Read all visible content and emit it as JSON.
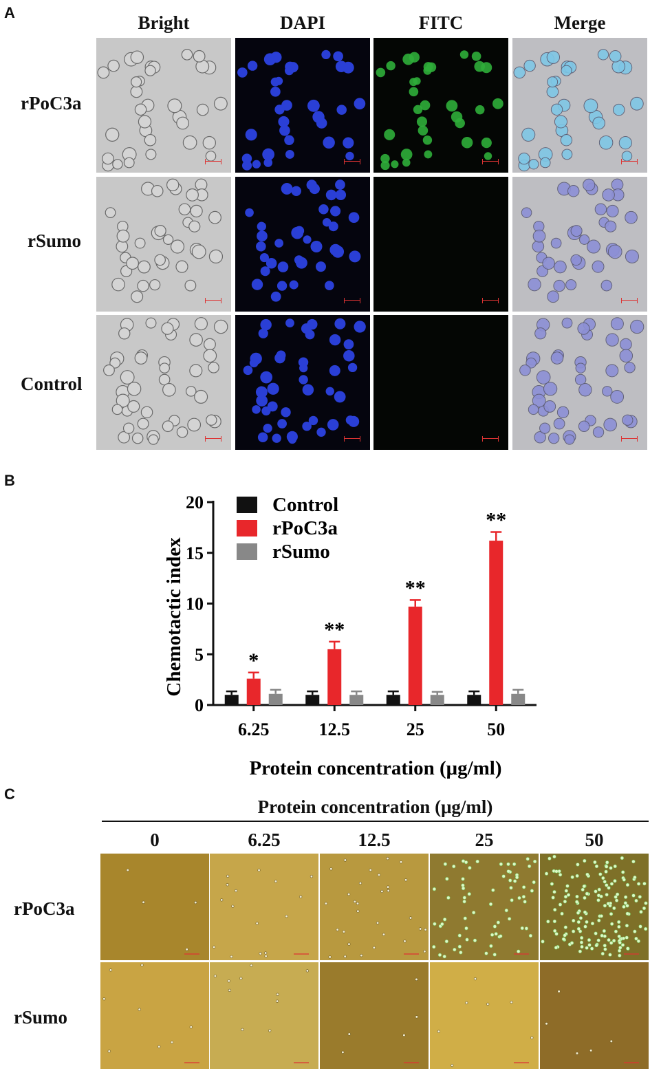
{
  "panels": {
    "a": "A",
    "b": "B",
    "c": "C"
  },
  "panel_a": {
    "columns": [
      "Bright",
      "DAPI",
      "FITC",
      "Merge"
    ],
    "rows": [
      "rPoC3a",
      "rSumo",
      "Control"
    ]
  },
  "chart_data": {
    "type": "bar",
    "ylabel": "Chemotactic index",
    "xlabel": "Protein concentration (μg/ml)",
    "categories": [
      "6.25",
      "12.5",
      "25",
      "50"
    ],
    "ylim": [
      0,
      20
    ],
    "yticks": [
      0,
      5,
      10,
      15,
      20
    ],
    "legend_position": "top-left",
    "series": [
      {
        "name": "Control",
        "color": "#111111",
        "values": [
          1.0,
          1.0,
          1.0,
          1.0
        ],
        "errors": [
          0.35,
          0.35,
          0.35,
          0.35
        ]
      },
      {
        "name": "rPoC3a",
        "color": "#e8272b",
        "values": [
          2.6,
          5.5,
          9.7,
          16.2
        ],
        "errors": [
          0.6,
          0.75,
          0.65,
          0.85
        ]
      },
      {
        "name": "rSumo",
        "color": "#888888",
        "values": [
          1.1,
          1.0,
          1.0,
          1.1
        ],
        "errors": [
          0.4,
          0.35,
          0.3,
          0.4
        ]
      }
    ],
    "significance": [
      "*",
      "**",
      "**",
      "**"
    ]
  },
  "panel_c": {
    "header": "Protein concentration (μg/ml)",
    "columns": [
      "0",
      "6.25",
      "12.5",
      "25",
      "50"
    ],
    "rows": [
      "rPoC3a",
      "rSumo"
    ]
  }
}
